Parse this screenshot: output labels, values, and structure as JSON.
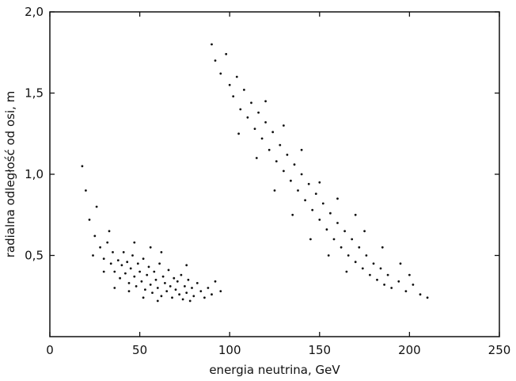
{
  "chart_data": {
    "type": "scatter",
    "title": "",
    "xlabel": "energia neutrina, GeV",
    "ylabel": "radialna odległość od osi, m",
    "xlim": [
      0,
      250
    ],
    "ylim": [
      0,
      2.0
    ],
    "x_ticks": [
      0,
      50,
      100,
      150,
      200,
      250
    ],
    "x_tick_labels": [
      "0",
      "50",
      "100",
      "150",
      "200",
      "250"
    ],
    "y_ticks": [
      0.5,
      1.0,
      1.5,
      2.0
    ],
    "y_tick_labels": [
      "0,5",
      "1,0",
      "1,5",
      "2,0"
    ],
    "grid": false,
    "legend": "none",
    "colors": {
      "points": "#111111",
      "axes": "#111111"
    },
    "series": [
      {
        "points": [
          [
            22,
            0.72
          ],
          [
            25,
            0.62
          ],
          [
            28,
            0.55
          ],
          [
            30,
            0.48
          ],
          [
            32,
            0.58
          ],
          [
            34,
            0.45
          ],
          [
            35,
            0.52
          ],
          [
            36,
            0.4
          ],
          [
            38,
            0.47
          ],
          [
            39,
            0.36
          ],
          [
            40,
            0.44
          ],
          [
            41,
            0.52
          ],
          [
            42,
            0.39
          ],
          [
            43,
            0.46
          ],
          [
            44,
            0.33
          ],
          [
            45,
            0.42
          ],
          [
            46,
            0.5
          ],
          [
            47,
            0.37
          ],
          [
            48,
            0.31
          ],
          [
            49,
            0.45
          ],
          [
            50,
            0.4
          ],
          [
            51,
            0.34
          ],
          [
            52,
            0.48
          ],
          [
            53,
            0.29
          ],
          [
            54,
            0.38
          ],
          [
            55,
            0.43
          ],
          [
            56,
            0.32
          ],
          [
            57,
            0.27
          ],
          [
            58,
            0.4
          ],
          [
            59,
            0.35
          ],
          [
            60,
            0.3
          ],
          [
            61,
            0.45
          ],
          [
            62,
            0.25
          ],
          [
            63,
            0.37
          ],
          [
            64,
            0.33
          ],
          [
            65,
            0.28
          ],
          [
            66,
            0.41
          ],
          [
            67,
            0.31
          ],
          [
            68,
            0.24
          ],
          [
            69,
            0.36
          ],
          [
            70,
            0.29
          ],
          [
            71,
            0.34
          ],
          [
            72,
            0.26
          ],
          [
            73,
            0.38
          ],
          [
            74,
            0.23
          ],
          [
            75,
            0.31
          ],
          [
            76,
            0.27
          ],
          [
            77,
            0.35
          ],
          [
            78,
            0.22
          ],
          [
            79,
            0.3
          ],
          [
            80,
            0.25
          ],
          [
            82,
            0.33
          ],
          [
            84,
            0.28
          ],
          [
            86,
            0.24
          ],
          [
            88,
            0.3
          ],
          [
            90,
            0.26
          ],
          [
            30,
            0.4
          ],
          [
            36,
            0.3
          ],
          [
            44,
            0.28
          ],
          [
            52,
            0.24
          ],
          [
            60,
            0.22
          ],
          [
            26,
            0.8
          ],
          [
            20,
            0.9
          ],
          [
            18,
            1.05
          ],
          [
            24,
            0.5
          ],
          [
            33,
            0.65
          ],
          [
            47,
            0.58
          ],
          [
            62,
            0.52
          ],
          [
            76,
            0.44
          ],
          [
            92,
            0.34
          ],
          [
            95,
            0.28
          ],
          [
            56,
            0.55
          ]
        ]
      },
      {
        "points": [
          [
            90,
            1.8
          ],
          [
            92,
            1.7
          ],
          [
            95,
            1.62
          ],
          [
            98,
            1.74
          ],
          [
            100,
            1.55
          ],
          [
            102,
            1.48
          ],
          [
            104,
            1.6
          ],
          [
            106,
            1.4
          ],
          [
            108,
            1.52
          ],
          [
            110,
            1.35
          ],
          [
            112,
            1.44
          ],
          [
            114,
            1.28
          ],
          [
            116,
            1.38
          ],
          [
            118,
            1.22
          ],
          [
            120,
            1.32
          ],
          [
            122,
            1.15
          ],
          [
            124,
            1.26
          ],
          [
            126,
            1.08
          ],
          [
            128,
            1.18
          ],
          [
            130,
            1.02
          ],
          [
            132,
            1.12
          ],
          [
            134,
            0.96
          ],
          [
            136,
            1.06
          ],
          [
            138,
            0.9
          ],
          [
            140,
            1.0
          ],
          [
            142,
            0.84
          ],
          [
            144,
            0.94
          ],
          [
            146,
            0.78
          ],
          [
            148,
            0.88
          ],
          [
            150,
            0.72
          ],
          [
            152,
            0.82
          ],
          [
            154,
            0.66
          ],
          [
            156,
            0.76
          ],
          [
            158,
            0.6
          ],
          [
            160,
            0.7
          ],
          [
            162,
            0.55
          ],
          [
            164,
            0.65
          ],
          [
            166,
            0.5
          ],
          [
            168,
            0.6
          ],
          [
            170,
            0.46
          ],
          [
            172,
            0.55
          ],
          [
            174,
            0.42
          ],
          [
            176,
            0.5
          ],
          [
            178,
            0.38
          ],
          [
            180,
            0.45
          ],
          [
            182,
            0.35
          ],
          [
            184,
            0.42
          ],
          [
            186,
            0.32
          ],
          [
            188,
            0.38
          ],
          [
            190,
            0.3
          ],
          [
            194,
            0.34
          ],
          [
            198,
            0.28
          ],
          [
            202,
            0.32
          ],
          [
            206,
            0.26
          ],
          [
            210,
            0.24
          ],
          [
            150,
            0.95
          ],
          [
            160,
            0.85
          ],
          [
            140,
            1.15
          ],
          [
            130,
            1.3
          ],
          [
            120,
            1.45
          ],
          [
            165,
            0.4
          ],
          [
            175,
            0.65
          ],
          [
            185,
            0.55
          ],
          [
            145,
            0.6
          ],
          [
            135,
            0.75
          ],
          [
            125,
            0.9
          ],
          [
            115,
            1.1
          ],
          [
            105,
            1.25
          ],
          [
            155,
            0.5
          ],
          [
            170,
            0.75
          ],
          [
            195,
            0.45
          ],
          [
            200,
            0.38
          ]
        ]
      }
    ]
  }
}
